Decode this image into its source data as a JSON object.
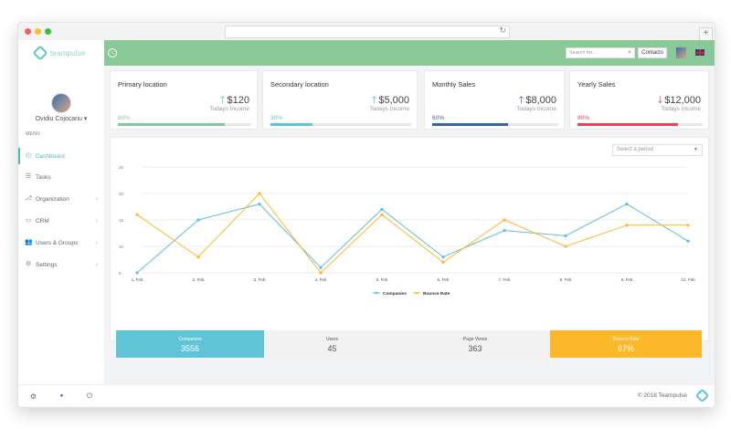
{
  "app": {
    "logo_text": "teampulse"
  },
  "user": {
    "name": "Ovidiu Cojocariu ▾"
  },
  "sidebar": {
    "menu_title": "MENU",
    "items": [
      {
        "label": "Dashboard",
        "icon": "dashboard-icon",
        "glyph": "◴",
        "active": true,
        "chevron": ""
      },
      {
        "label": "Tasks",
        "icon": "tasks-icon",
        "glyph": "☰",
        "active": false,
        "chevron": ""
      },
      {
        "label": "Organization",
        "icon": "organization-icon",
        "glyph": "⎇",
        "active": false,
        "chevron": "‹"
      },
      {
        "label": "CRM",
        "icon": "crm-icon",
        "glyph": "▭",
        "active": false,
        "chevron": "‹"
      },
      {
        "label": "Users & Groups",
        "icon": "users-icon",
        "glyph": "👥",
        "active": false,
        "chevron": "‹"
      },
      {
        "label": "Settings",
        "icon": "gear-icon",
        "glyph": "⚙",
        "active": false,
        "chevron": "‹"
      }
    ],
    "footer_icons": [
      "⚙",
      "●",
      "⏻"
    ]
  },
  "topbar": {
    "search_placeholder": "Search for...",
    "contacts_label": "Contacts"
  },
  "cards": [
    {
      "title": "Primary location",
      "value": "$120",
      "arrow": "🡑",
      "direction": "up",
      "subtitle": "Todays Income",
      "percent_label": "80%",
      "progress": 0.8,
      "color": "#8ac59a",
      "arrow_color": "#5cb3cf"
    },
    {
      "title": "Secondary location",
      "value": "$5,000",
      "arrow": "🡑",
      "direction": "up",
      "subtitle": "Todays Income",
      "percent_label": "30%",
      "progress": 0.3,
      "color": "#5cc6d4",
      "arrow_color": "#5cb3cf"
    },
    {
      "title": "Monthly Sales",
      "value": "$8,000",
      "arrow": "🡑",
      "direction": "up",
      "subtitle": "Todays Income",
      "percent_label": "60%",
      "progress": 0.6,
      "color": "#3b63a8",
      "arrow_color": "#3b63a8"
    },
    {
      "title": "Yearly Sales",
      "value": "$12,000",
      "arrow": "🡓",
      "direction": "down",
      "subtitle": "Todays Income",
      "percent_label": "80%",
      "progress": 0.8,
      "color": "#e8455a",
      "arrow_color": "#e8455a"
    }
  ],
  "chart_panel": {
    "period_placeholder": "Select a period"
  },
  "chart_data": {
    "type": "line",
    "categories": [
      "1. Feb",
      "2. Feb",
      "3. Feb",
      "4. Feb",
      "5. Feb",
      "6. Feb",
      "7. Feb",
      "8. Feb",
      "9. Feb",
      "10. Feb"
    ],
    "ylim": [
      5,
      25
    ],
    "yticks": [
      5,
      10,
      15,
      20,
      25
    ],
    "series": [
      {
        "name": "Companies",
        "color": "#5bc0d8",
        "values": [
          5,
          15,
          18,
          6,
          17,
          8,
          13,
          12,
          18,
          11
        ]
      },
      {
        "name": "Bounce Rate",
        "color": "#fbb929",
        "values": [
          16,
          8,
          20,
          5,
          16,
          7,
          15,
          10,
          14,
          14
        ]
      }
    ],
    "legend_position": "bottom-center",
    "grid": true
  },
  "stats": [
    {
      "label": "Companies",
      "value": "3556",
      "bg": "#5ec4d8",
      "fg": "#ffffff"
    },
    {
      "label": "Users",
      "value": "45",
      "bg": "#f2f2f2",
      "fg": "#555555"
    },
    {
      "label": "Page Views",
      "value": "363",
      "bg": "#f2f2f2",
      "fg": "#555555"
    },
    {
      "label": "Bounce Rate",
      "value": "67%",
      "bg": "#fbb929",
      "fg": "#ffffff"
    }
  ],
  "footer": {
    "copyright": "© 2018 Teampulse"
  }
}
